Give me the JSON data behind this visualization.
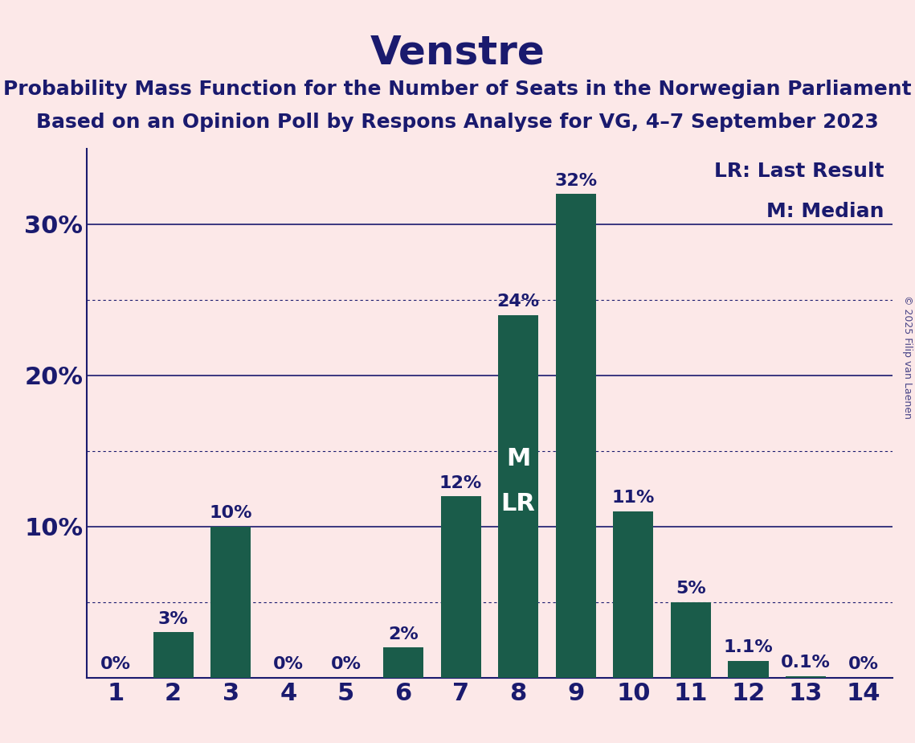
{
  "title": "Venstre",
  "subtitle1": "Probability Mass Function for the Number of Seats in the Norwegian Parliament",
  "subtitle2": "Based on an Opinion Poll by Respons Analyse for VG, 4–7 September 2023",
  "copyright": "© 2025 Filip van Laenen",
  "categories": [
    1,
    2,
    3,
    4,
    5,
    6,
    7,
    8,
    9,
    10,
    11,
    12,
    13,
    14
  ],
  "values": [
    0.0,
    3.0,
    10.0,
    0.0,
    0.0,
    2.0,
    12.0,
    24.0,
    32.0,
    11.0,
    5.0,
    1.1,
    0.1,
    0.0
  ],
  "bar_color": "#1a5c4a",
  "background_color": "#fce8e8",
  "text_color": "#1a1a6e",
  "bar_labels": [
    "0%",
    "3%",
    "10%",
    "0%",
    "0%",
    "2%",
    "12%",
    "24%",
    "32%",
    "11%",
    "5%",
    "1.1%",
    "0.1%",
    "0%"
  ],
  "median_bar_index": 7,
  "lr_bar_index": 7,
  "median_label": "M",
  "lr_label": "LR",
  "legend_lr": "LR: Last Result",
  "legend_m": "M: Median",
  "ylim": [
    0,
    35
  ],
  "solid_gridlines": [
    10,
    20,
    30
  ],
  "dashed_gridlines": [
    5,
    15,
    25
  ],
  "title_fontsize": 36,
  "subtitle_fontsize": 18,
  "axis_label_fontsize": 22,
  "bar_label_fontsize": 16,
  "legend_fontsize": 18,
  "inside_label_fontsize": 22,
  "copyright_fontsize": 9
}
